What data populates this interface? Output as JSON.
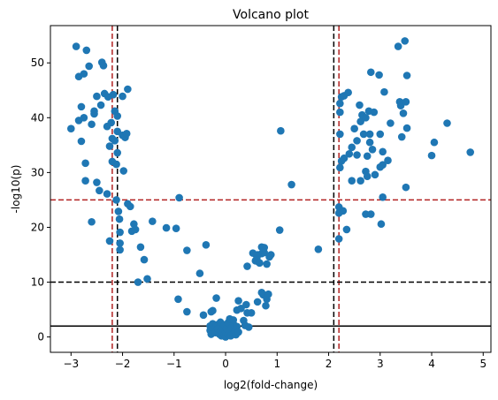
{
  "chart_data": {
    "type": "scatter",
    "title": "Volcano plot",
    "xlabel": "log2(fold-change)",
    "ylabel": "-log10(p)",
    "xlim": [
      -3.4,
      5.15
    ],
    "ylim": [
      -2.8,
      56.8
    ],
    "xticks": [
      -3,
      -2,
      -1,
      0,
      1,
      2,
      3,
      4,
      5
    ],
    "yticks": [
      0,
      10,
      20,
      30,
      40,
      50
    ],
    "grid": false,
    "marker_color": "#1f77b4",
    "points": [
      [
        -3.0,
        38.0
      ],
      [
        -2.9,
        53.0
      ],
      [
        -2.85,
        47.5
      ],
      [
        -2.85,
        39.5
      ],
      [
        -2.8,
        35.7
      ],
      [
        -2.8,
        42.0
      ],
      [
        -2.75,
        48.0
      ],
      [
        -2.75,
        40.0
      ],
      [
        -2.72,
        31.7
      ],
      [
        -2.72,
        28.5
      ],
      [
        -2.7,
        52.3
      ],
      [
        -2.65,
        49.4
      ],
      [
        -2.6,
        38.8
      ],
      [
        -2.6,
        21.0
      ],
      [
        -2.55,
        41.2
      ],
      [
        -2.55,
        40.7
      ],
      [
        -2.5,
        43.9
      ],
      [
        -2.5,
        28.2
      ],
      [
        -2.45,
        26.7
      ],
      [
        -2.42,
        42.3
      ],
      [
        -2.4,
        50.1
      ],
      [
        -2.37,
        49.5
      ],
      [
        -2.35,
        44.4
      ],
      [
        -2.3,
        38.4
      ],
      [
        -2.3,
        26.1
      ],
      [
        -2.28,
        43.8
      ],
      [
        -2.25,
        34.8
      ],
      [
        -2.25,
        17.5
      ],
      [
        -2.22,
        39.1
      ],
      [
        -2.2,
        32.0
      ],
      [
        -2.2,
        36.2
      ],
      [
        -2.18,
        44.2
      ],
      [
        -2.15,
        41.2
      ],
      [
        -2.15,
        35.8
      ],
      [
        -2.12,
        31.5
      ],
      [
        -2.12,
        25.0
      ],
      [
        -2.1,
        40.3
      ],
      [
        -2.1,
        37.5
      ],
      [
        -2.1,
        33.6
      ],
      [
        -2.08,
        22.9
      ],
      [
        -2.06,
        21.5
      ],
      [
        -2.05,
        19.1
      ],
      [
        -2.05,
        17.1
      ],
      [
        -2.05,
        15.9
      ],
      [
        -2.0,
        43.9
      ],
      [
        -2.0,
        36.8
      ],
      [
        -1.98,
        30.3
      ],
      [
        -1.95,
        36.4
      ],
      [
        -1.92,
        37.1
      ],
      [
        -1.9,
        45.2
      ],
      [
        -1.9,
        24.3
      ],
      [
        -1.85,
        23.8
      ],
      [
        -1.82,
        19.3
      ],
      [
        -1.78,
        20.6
      ],
      [
        -1.75,
        19.6
      ],
      [
        -1.7,
        10.0
      ],
      [
        -1.65,
        16.4
      ],
      [
        -1.58,
        14.1
      ],
      [
        -1.52,
        10.6
      ],
      [
        -1.42,
        21.1
      ],
      [
        -1.15,
        19.9
      ],
      [
        -0.96,
        19.8
      ],
      [
        -0.9,
        25.4
      ],
      [
        -0.92,
        6.9
      ],
      [
        -0.75,
        15.8
      ],
      [
        -0.75,
        4.6
      ],
      [
        -0.5,
        11.6
      ],
      [
        -0.43,
        4.0
      ],
      [
        -0.38,
        16.8
      ],
      [
        -0.28,
        4.6
      ],
      [
        -0.25,
        4.8
      ],
      [
        -0.18,
        7.1
      ],
      [
        -0.3,
        2.0
      ],
      [
        -0.3,
        1.2
      ],
      [
        -0.28,
        0.5
      ],
      [
        -0.25,
        2.4
      ],
      [
        -0.2,
        1.8
      ],
      [
        -0.2,
        0.8
      ],
      [
        -0.18,
        2.2
      ],
      [
        -0.15,
        1.5
      ],
      [
        -0.12,
        0.5
      ],
      [
        -0.1,
        2.7
      ],
      [
        -0.1,
        1.0
      ],
      [
        -0.08,
        0.2
      ],
      [
        -0.05,
        1.6
      ],
      [
        -0.05,
        0.7
      ],
      [
        -0.02,
        2.2
      ],
      [
        0.0,
        0.0
      ],
      [
        0.0,
        0.9
      ],
      [
        0.02,
        1.5
      ],
      [
        0.05,
        0.4
      ],
      [
        0.05,
        2.6
      ],
      [
        0.08,
        1.0
      ],
      [
        0.1,
        0.2
      ],
      [
        0.12,
        1.7
      ],
      [
        0.15,
        0.6
      ],
      [
        0.15,
        2.4
      ],
      [
        0.18,
        1.1
      ],
      [
        0.2,
        0.4
      ],
      [
        0.22,
        1.9
      ],
      [
        0.25,
        0.9
      ],
      [
        0.08,
        3.3
      ],
      [
        0.15,
        3.1
      ],
      [
        0.22,
        4.9
      ],
      [
        0.25,
        6.6
      ],
      [
        0.3,
        5.2
      ],
      [
        0.35,
        3.0
      ],
      [
        0.38,
        2.1
      ],
      [
        0.4,
        5.9
      ],
      [
        0.42,
        4.4
      ],
      [
        0.45,
        1.8
      ],
      [
        0.5,
        4.4
      ],
      [
        0.62,
        6.4
      ],
      [
        0.7,
        8.1
      ],
      [
        0.73,
        7.7
      ],
      [
        0.78,
        5.7
      ],
      [
        0.8,
        6.9
      ],
      [
        0.83,
        7.8
      ],
      [
        0.42,
        12.9
      ],
      [
        0.53,
        15.3
      ],
      [
        0.58,
        13.9
      ],
      [
        0.61,
        14.6
      ],
      [
        0.62,
        13.8
      ],
      [
        0.66,
        13.5
      ],
      [
        0.7,
        15.2
      ],
      [
        0.75,
        15.4
      ],
      [
        0.8,
        13.3
      ],
      [
        0.62,
        15.0
      ],
      [
        0.6,
        14.9
      ],
      [
        0.7,
        16.4
      ],
      [
        0.75,
        16.3
      ],
      [
        0.85,
        14.6
      ],
      [
        0.88,
        15.0
      ],
      [
        1.05,
        19.5
      ],
      [
        1.07,
        37.6
      ],
      [
        1.28,
        27.8
      ],
      [
        1.8,
        16.0
      ],
      [
        2.2,
        23.7
      ],
      [
        2.2,
        22.6
      ],
      [
        2.2,
        17.9
      ],
      [
        2.22,
        42.6
      ],
      [
        2.22,
        41.0
      ],
      [
        2.22,
        37.0
      ],
      [
        2.22,
        30.9
      ],
      [
        2.25,
        32.1
      ],
      [
        2.25,
        43.8
      ],
      [
        2.28,
        23.0
      ],
      [
        2.3,
        32.6
      ],
      [
        2.3,
        44.0
      ],
      [
        2.35,
        19.6
      ],
      [
        2.38,
        44.6
      ],
      [
        2.4,
        33.4
      ],
      [
        2.45,
        34.6
      ],
      [
        2.45,
        28.5
      ],
      [
        2.5,
        38.0
      ],
      [
        2.55,
        35.8
      ],
      [
        2.55,
        33.2
      ],
      [
        2.6,
        42.3
      ],
      [
        2.62,
        39.3
      ],
      [
        2.62,
        28.5
      ],
      [
        2.65,
        40.5
      ],
      [
        2.68,
        37.0
      ],
      [
        2.72,
        40.0
      ],
      [
        2.72,
        30.2
      ],
      [
        2.72,
        22.4
      ],
      [
        2.75,
        33.0
      ],
      [
        2.75,
        29.3
      ],
      [
        2.78,
        41.2
      ],
      [
        2.8,
        37.0
      ],
      [
        2.8,
        35.5
      ],
      [
        2.82,
        48.3
      ],
      [
        2.82,
        22.4
      ],
      [
        2.85,
        34.2
      ],
      [
        2.88,
        41.0
      ],
      [
        2.9,
        29.6
      ],
      [
        2.98,
        47.8
      ],
      [
        3.0,
        37.0
      ],
      [
        3.0,
        31.0
      ],
      [
        3.02,
        20.6
      ],
      [
        3.05,
        33.8
      ],
      [
        3.05,
        31.4
      ],
      [
        3.05,
        25.5
      ],
      [
        3.08,
        44.7
      ],
      [
        3.15,
        32.2
      ],
      [
        3.2,
        39.0
      ],
      [
        3.35,
        53.0
      ],
      [
        3.38,
        42.9
      ],
      [
        3.4,
        42.2
      ],
      [
        3.42,
        36.5
      ],
      [
        3.45,
        40.8
      ],
      [
        3.48,
        54.0
      ],
      [
        3.5,
        27.3
      ],
      [
        3.5,
        42.9
      ],
      [
        3.52,
        38.1
      ],
      [
        3.52,
        47.7
      ],
      [
        4.0,
        33.1
      ],
      [
        4.05,
        35.5
      ],
      [
        4.3,
        39.0
      ],
      [
        4.75,
        33.7
      ]
    ],
    "reference_lines": [
      {
        "orientation": "vertical",
        "x": -2.2,
        "color": "#b22222",
        "dash": true
      },
      {
        "orientation": "vertical",
        "x": 2.2,
        "color": "#b22222",
        "dash": true
      },
      {
        "orientation": "vertical",
        "x": -2.1,
        "color": "#000000",
        "dash": true
      },
      {
        "orientation": "vertical",
        "x": 2.1,
        "color": "#000000",
        "dash": true
      },
      {
        "orientation": "horizontal",
        "y": 25,
        "color": "#b22222",
        "dash": true
      },
      {
        "orientation": "horizontal",
        "y": 10,
        "color": "#000000",
        "dash": true
      },
      {
        "orientation": "horizontal",
        "y": 2,
        "color": "#000000",
        "dash": false
      }
    ]
  }
}
